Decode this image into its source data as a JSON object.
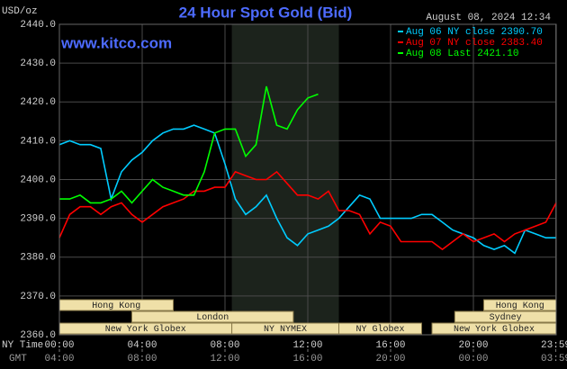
{
  "chart_data": {
    "type": "line",
    "title": "24 Hour Spot Gold (Bid)",
    "y_label": "USD/oz",
    "timestamp": "August 08, 2024 12:34",
    "watermark": "www.kitco.com",
    "x_label": "NY Time",
    "x2_label": "GMT",
    "sessions": [
      "Hong Kong",
      "Hong Kong",
      "London",
      "Sydney",
      "New York Globex",
      "NY NYMEX",
      "NY Globex",
      "New York Globex"
    ],
    "xlim": [
      0,
      24
    ],
    "ylim": [
      2360,
      2440
    ],
    "grid": true,
    "yticks": [
      {
        "value": 2360,
        "label": "2360.0"
      },
      {
        "value": 2370,
        "label": "2370.0"
      },
      {
        "value": 2380,
        "label": "2380.0"
      },
      {
        "value": 2390,
        "label": "2390.0"
      },
      {
        "value": 2400,
        "label": "2400.0"
      },
      {
        "value": 2410,
        "label": "2410.0"
      },
      {
        "value": 2420,
        "label": "2420.0"
      },
      {
        "value": 2430,
        "label": "2430.0"
      },
      {
        "value": 2440,
        "label": "2440.0"
      }
    ],
    "xticks": [
      {
        "value": 0,
        "label": "00:00"
      },
      {
        "value": 4,
        "label": "04:00"
      },
      {
        "value": 8,
        "label": "08:00"
      },
      {
        "value": 12,
        "label": "12:00"
      },
      {
        "value": 16,
        "label": "16:00"
      },
      {
        "value": 20,
        "label": "20:00"
      },
      {
        "value": 23.98,
        "label": "23:59"
      }
    ],
    "x2ticks": [
      {
        "value": 0,
        "label": "04:00"
      },
      {
        "value": 4,
        "label": "08:00"
      },
      {
        "value": 8,
        "label": "12:00"
      },
      {
        "value": 12,
        "label": "16:00"
      },
      {
        "value": 16,
        "label": "20:00"
      },
      {
        "value": 20,
        "label": "00:00"
      },
      {
        "value": 23.98,
        "label": "03:59"
      }
    ],
    "x": [
      0,
      0.5,
      1,
      1.5,
      2,
      2.5,
      3,
      3.5,
      4,
      4.5,
      5,
      5.5,
      6,
      6.5,
      7,
      7.5,
      8,
      8.5,
      9,
      9.5,
      10,
      10.5,
      11,
      11.5,
      12,
      12.5,
      13,
      13.5,
      14,
      14.5,
      15,
      15.5,
      16,
      16.5,
      17,
      17.5,
      18,
      18.5,
      19,
      19.5,
      20,
      20.5,
      21,
      21.5,
      22,
      22.5,
      23,
      23.5,
      24
    ],
    "series": [
      {
        "name": "Aug 06 NY close 2390.70",
        "color": "#00ccff",
        "values": [
          2409,
          2410,
          2409,
          2409,
          2408,
          2395,
          2402,
          2405,
          2407,
          2410,
          2412,
          2413,
          2413,
          2414,
          2413,
          2412,
          2404,
          2395,
          2391,
          2393,
          2396,
          2390,
          2385,
          2383,
          2386,
          2387,
          2388,
          2390,
          2393,
          2396,
          2395,
          2390,
          2390,
          2390,
          2390,
          2391,
          2391,
          2389,
          2387,
          2386,
          2385,
          2383,
          2382,
          2383,
          2381,
          2387,
          2386,
          2385,
          2385
        ]
      },
      {
        "name": "Aug 07 NY close 2383.40",
        "color": "#ff0000",
        "values": [
          2385,
          2391,
          2393,
          2393,
          2391,
          2393,
          2394,
          2391,
          2389,
          2391,
          2393,
          2394,
          2395,
          2397,
          2397,
          2398,
          2398,
          2402,
          2401,
          2400,
          2400,
          2402,
          2399,
          2396,
          2396,
          2395,
          2397,
          2392,
          2392,
          2391,
          2386,
          2389,
          2388,
          2384,
          2384,
          2384,
          2384,
          2382,
          2384,
          2386,
          2384,
          2385,
          2386,
          2384,
          2386,
          2387,
          2388,
          2389,
          2394
        ]
      },
      {
        "name": "Aug 08 Last 2421.10",
        "color": "#00ff00",
        "values": [
          2395,
          2395,
          2396,
          2394,
          2394,
          2395,
          2397,
          2394,
          2397,
          2400,
          2398,
          2397,
          2396,
          2396,
          2402,
          2412,
          2413,
          2413,
          2406,
          2409,
          2424,
          2414,
          2413,
          2418,
          2421,
          2422,
          null,
          null,
          null,
          null,
          null,
          null,
          null,
          null,
          null,
          null,
          null,
          null,
          null,
          null,
          null,
          null,
          null,
          null,
          null,
          null,
          null,
          null,
          null
        ]
      }
    ]
  }
}
